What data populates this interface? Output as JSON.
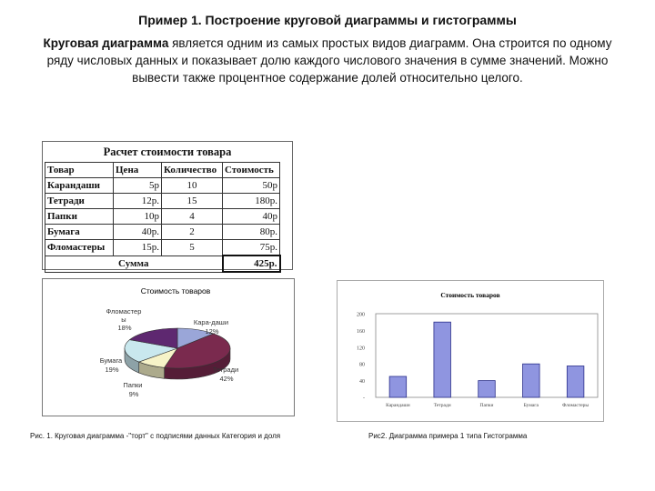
{
  "header": {
    "title": "Пример 1. Построение круговой диаграммы и гистограммы",
    "intro_bold": "Круговая диаграмма",
    "intro_rest": " является одним из самых простых видов диаграмм. Она строится по одному ряду числовых данных и показывает долю каждого числового значения в сумме значений. Можно вывести также процентное содержание долей относительно целого."
  },
  "table": {
    "title": "Расчет стоимости товара",
    "headers": [
      "Товар",
      "Цена",
      "Количество",
      "Стоимость"
    ],
    "rows": [
      [
        "Карандаши",
        "5р",
        "10",
        "50р"
      ],
      [
        "Тетради",
        "12р.",
        "15",
        "180р."
      ],
      [
        "Папки",
        "10р",
        "4",
        "40р"
      ],
      [
        "Бумага",
        "40р.",
        "2",
        "80р."
      ],
      [
        "Фломастеры",
        "15р.",
        "5",
        "75р."
      ]
    ],
    "sum_label": "Сумма",
    "sum_value": "425р."
  },
  "pie": {
    "title": "Стоимость товаров",
    "labels": [
      {
        "lines": [
          "Фломастер",
          "ы",
          "18%"
        ]
      },
      {
        "lines": [
          "Кара-даши",
          "12%"
        ]
      },
      {
        "lines": [
          "Бумага",
          "19%"
        ]
      },
      {
        "lines": [
          "Тетради",
          "42%"
        ]
      },
      {
        "lines": [
          "Папки",
          "9%"
        ]
      }
    ]
  },
  "captions": {
    "pie": "Рис. 1. Круговая диаграмма -\"торт\" с подписями данных Категория и доля",
    "bar": "Рис2. Диаграмма примера 1 типа Гистограмма"
  },
  "chart_data": [
    {
      "type": "pie",
      "title": "Стоимость товаров",
      "categories": [
        "Карандаши",
        "Тетради",
        "Папки",
        "Бумага",
        "Фломастеры"
      ],
      "values": [
        12,
        42,
        9,
        19,
        18
      ],
      "colors": [
        "#9aa6d8",
        "#7a2a4e",
        "#f6f3c8",
        "#c9e8ee",
        "#5e2870"
      ]
    },
    {
      "type": "bar",
      "title": "Стоимость товаров",
      "categories": [
        "Карандаши",
        "Тетради",
        "Папки",
        "Бумага",
        "Фломастеры"
      ],
      "values": [
        50,
        180,
        40,
        80,
        75
      ],
      "ylim": [
        0,
        200
      ],
      "yticks": [
        "-",
        "40",
        "80",
        "120",
        "160",
        "200"
      ],
      "bar_color": "#8f95e0"
    }
  ]
}
